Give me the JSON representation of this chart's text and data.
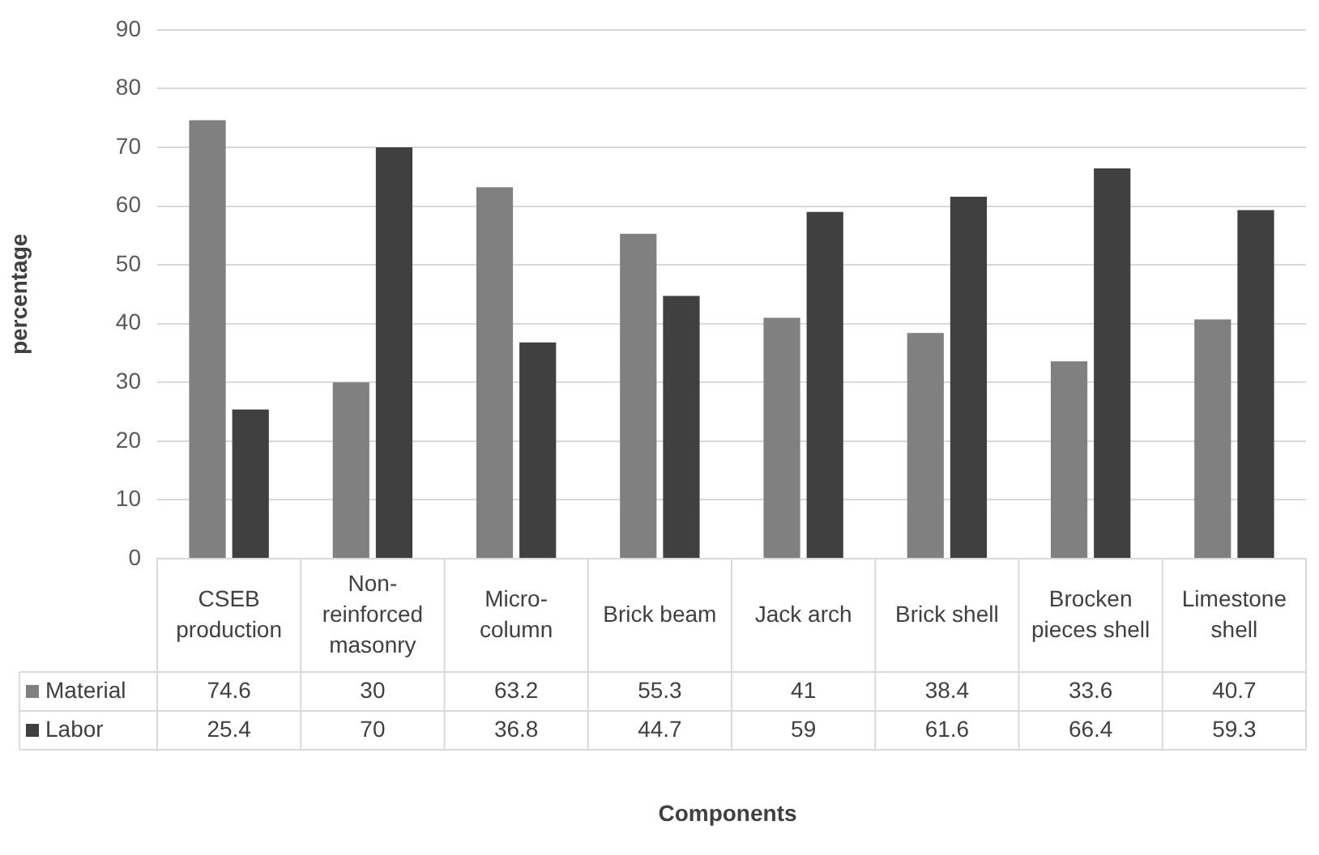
{
  "chart_data": {
    "type": "bar",
    "annotations": [
      "Components"
    ],
    "ylabel": "percentage",
    "categories": [
      "CSEB production",
      "Non-reinforced masonry",
      "Micro-column",
      "Brick beam",
      "Jack arch",
      "Brick shell",
      "Brocken pieces shell",
      "Limestone shell"
    ],
    "series": [
      {
        "name": "Material",
        "color": "#808080",
        "values": [
          74.6,
          30,
          63.2,
          55.3,
          41,
          38.4,
          33.6,
          40.7
        ]
      },
      {
        "name": "Labor",
        "color": "#404040",
        "values": [
          25.4,
          70,
          36.8,
          44.7,
          59,
          61.6,
          66.4,
          59.3
        ]
      }
    ],
    "ylim": [
      0,
      90
    ],
    "yticks": [
      0,
      10,
      20,
      30,
      40,
      50,
      60,
      70,
      80,
      90
    ],
    "grid": "y",
    "data_labels": true,
    "legend": "bottom left"
  }
}
